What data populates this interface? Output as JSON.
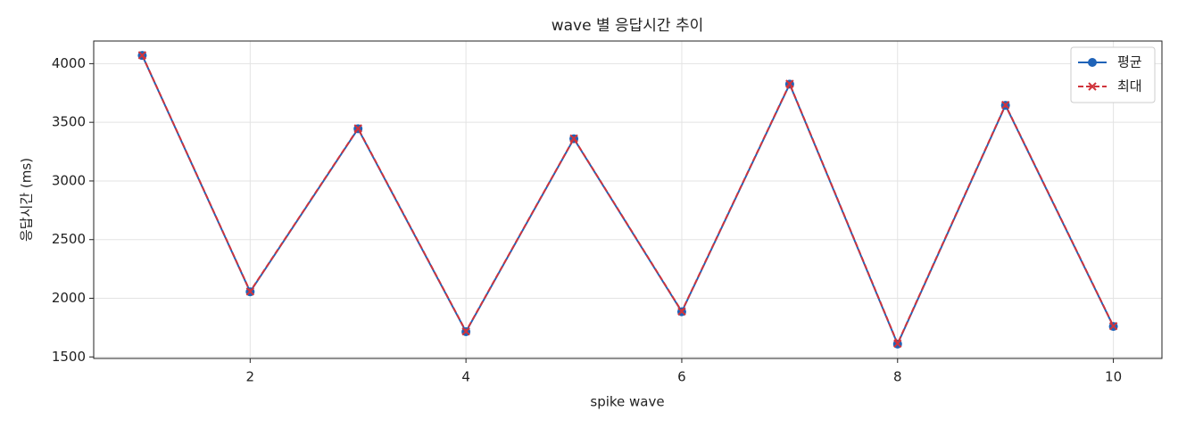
{
  "chart_data": {
    "type": "line",
    "title": "wave 별 응답시간 추이",
    "x_label": "spike wave",
    "y_label": "응답시간 (ms)",
    "x": [
      1,
      2,
      3,
      4,
      5,
      6,
      7,
      8,
      9,
      10
    ],
    "series": [
      {
        "name": "평균",
        "color": "#1f63b8",
        "marker": "o",
        "dash": false,
        "values": [
          4070,
          2055,
          3445,
          1715,
          3360,
          1885,
          3825,
          1610,
          3645,
          1760
        ]
      },
      {
        "name": "최대",
        "color": "#d0343c",
        "marker": "x",
        "dash": true,
        "values": [
          4072,
          2058,
          3448,
          1718,
          3362,
          1888,
          3828,
          1614,
          3648,
          1763
        ]
      }
    ],
    "xlim": [
      0.55,
      10.45
    ],
    "ylim": [
      1487,
      4193
    ],
    "xticks": [
      2,
      4,
      6,
      8,
      10
    ],
    "yticks": [
      1500,
      2000,
      2500,
      3000,
      3500,
      4000
    ],
    "grid": true,
    "legend": "upper right"
  }
}
